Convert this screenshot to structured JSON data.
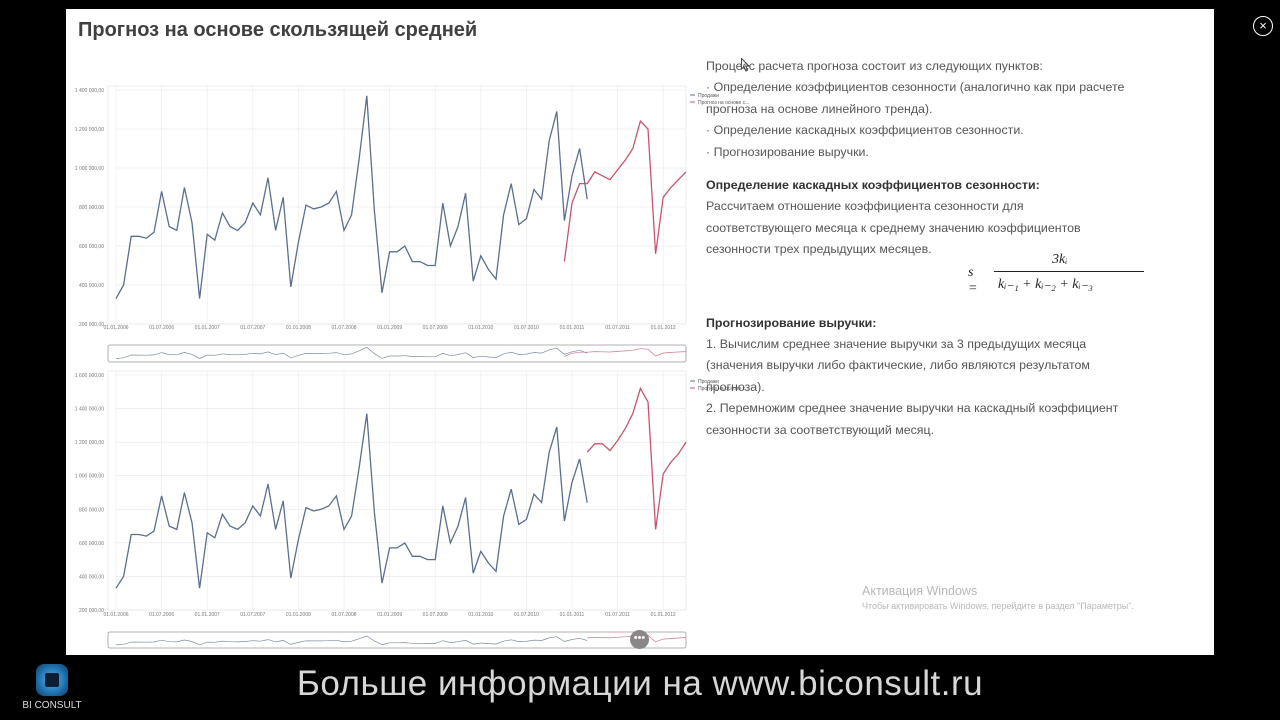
{
  "window": {
    "title": "Прогноз на основе скользящей средней",
    "close_label": "×"
  },
  "colors": {
    "sales": "#5a6f8f",
    "forecast": "#c8556a",
    "grid": "#e6e6e6"
  },
  "chart_data": [
    {
      "type": "line",
      "ylim": [
        200000,
        1400000
      ],
      "y_ticks": [
        "1 400 000,00",
        "1 200 000,00",
        "1 000 000,00",
        "800 000,00",
        "600 000,00",
        "400 000,00",
        "200 000,00"
      ],
      "x_ticks": [
        "01.01.2006",
        "01.07.2006",
        "01.01.2007",
        "01.07.2007",
        "01.01.2008",
        "01.07.2008",
        "01.01.2009",
        "01.07.2009",
        "01.01.2010",
        "01.07.2010",
        "01.01.2011",
        "01.07.2011",
        "01.01.2012"
      ],
      "legend": [
        "Продажи",
        "Прогноз на основе с..."
      ],
      "series": [
        {
          "name": "Продажи",
          "start": 0,
          "values": [
            330000,
            400000,
            650000,
            650000,
            640000,
            670000,
            880000,
            700000,
            680000,
            900000,
            720000,
            330000,
            660000,
            630000,
            770000,
            700000,
            680000,
            720000,
            820000,
            760000,
            950000,
            680000,
            850000,
            390000,
            620000,
            810000,
            790000,
            800000,
            820000,
            880000,
            680000,
            760000,
            1050000,
            1370000,
            780000,
            360000,
            570000,
            570000,
            600000,
            520000,
            520000,
            500000,
            500000,
            820000,
            600000,
            700000,
            870000,
            420000,
            550000,
            480000,
            430000,
            760000,
            920000,
            710000,
            740000,
            890000,
            840000,
            1140000,
            1290000,
            730000,
            960000,
            1100000,
            840000
          ]
        },
        {
          "name": "Прогноз на основе с...",
          "start": 59,
          "values": [
            520000,
            820000,
            920000,
            920000,
            980000,
            960000,
            940000,
            990000,
            1040000,
            1100000,
            1240000,
            1200000,
            560000,
            850000,
            900000,
            940000,
            980000
          ]
        }
      ]
    },
    {
      "type": "line",
      "ylim": [
        200000,
        1600000
      ],
      "y_ticks": [
        "1 600 000,00",
        "1 400 000,00",
        "1 200 000,00",
        "1 000 000,00",
        "800 000,00",
        "600 000,00",
        "400 000,00",
        "200 000,00"
      ],
      "x_ticks": [
        "01.01.2006",
        "01.07.2006",
        "01.01.2007",
        "01.07.2007",
        "01.01.2008",
        "01.07.2008",
        "01.01.2009",
        "01.07.2009",
        "01.01.2010",
        "01.07.2010",
        "01.01.2011",
        "01.07.2011",
        "01.01.2012"
      ],
      "legend": [
        "Продажи",
        "Прогноз на основе с..."
      ],
      "series": [
        {
          "name": "Продажи",
          "start": 0,
          "values": [
            330000,
            400000,
            650000,
            650000,
            640000,
            670000,
            880000,
            700000,
            680000,
            900000,
            720000,
            330000,
            660000,
            630000,
            770000,
            700000,
            680000,
            720000,
            820000,
            760000,
            950000,
            680000,
            850000,
            390000,
            620000,
            810000,
            790000,
            800000,
            820000,
            880000,
            680000,
            760000,
            1050000,
            1370000,
            780000,
            360000,
            570000,
            570000,
            600000,
            520000,
            520000,
            500000,
            500000,
            820000,
            600000,
            700000,
            870000,
            420000,
            550000,
            480000,
            430000,
            760000,
            920000,
            710000,
            740000,
            890000,
            840000,
            1140000,
            1290000,
            730000,
            960000,
            1100000,
            840000
          ]
        },
        {
          "name": "Прогноз на основе с...",
          "start": 62,
          "values": [
            1140000,
            1190000,
            1190000,
            1150000,
            1210000,
            1280000,
            1370000,
            1520000,
            1440000,
            680000,
            1010000,
            1080000,
            1130000,
            1200000
          ]
        }
      ]
    }
  ],
  "description": {
    "p1": "Процесс расчета прогноза состоит из следующих пунктов:",
    "p2": "· Определение коэффициентов сезонности (аналогично как при расчете прогноза на основе линейного тренда).",
    "p3": "· Определение каскадных коэффициентов сезонности.",
    "p4": "· Прогнозирование выручки.",
    "h1": "Определение каскадных коэффициентов сезонности:",
    "p5": "Рассчитаем отношение коэффициента сезонности для соответствующего месяца к среднему значению коэффициентов сезонности трех предыдущих месяцев.",
    "h2": "Прогнозирование выручки:",
    "p6": "1. Вычислим среднее значение выручки за 3 предыдущих месяца (значения выручки либо фактические, либо являются результатом прогноза).",
    "p7": "2. Перемножим среднее значение выручки на каскадный коэффициент сезонности за соответствующий месяц."
  },
  "formula": {
    "lhs": "s =",
    "numerator": "3kᵢ",
    "denominator": "kᵢ₋₁ + kᵢ₋₂ + kᵢ₋₃"
  },
  "watermark": {
    "line1": "Активация Windows",
    "line2": "Чтобы активировать Windows, перейдите в раздел \"Параметры\"."
  },
  "footer": {
    "banner": "Больше информации на www.biconsult.ru",
    "logo_text": "BI CONSULT"
  },
  "scroll_handle_label": "•••"
}
